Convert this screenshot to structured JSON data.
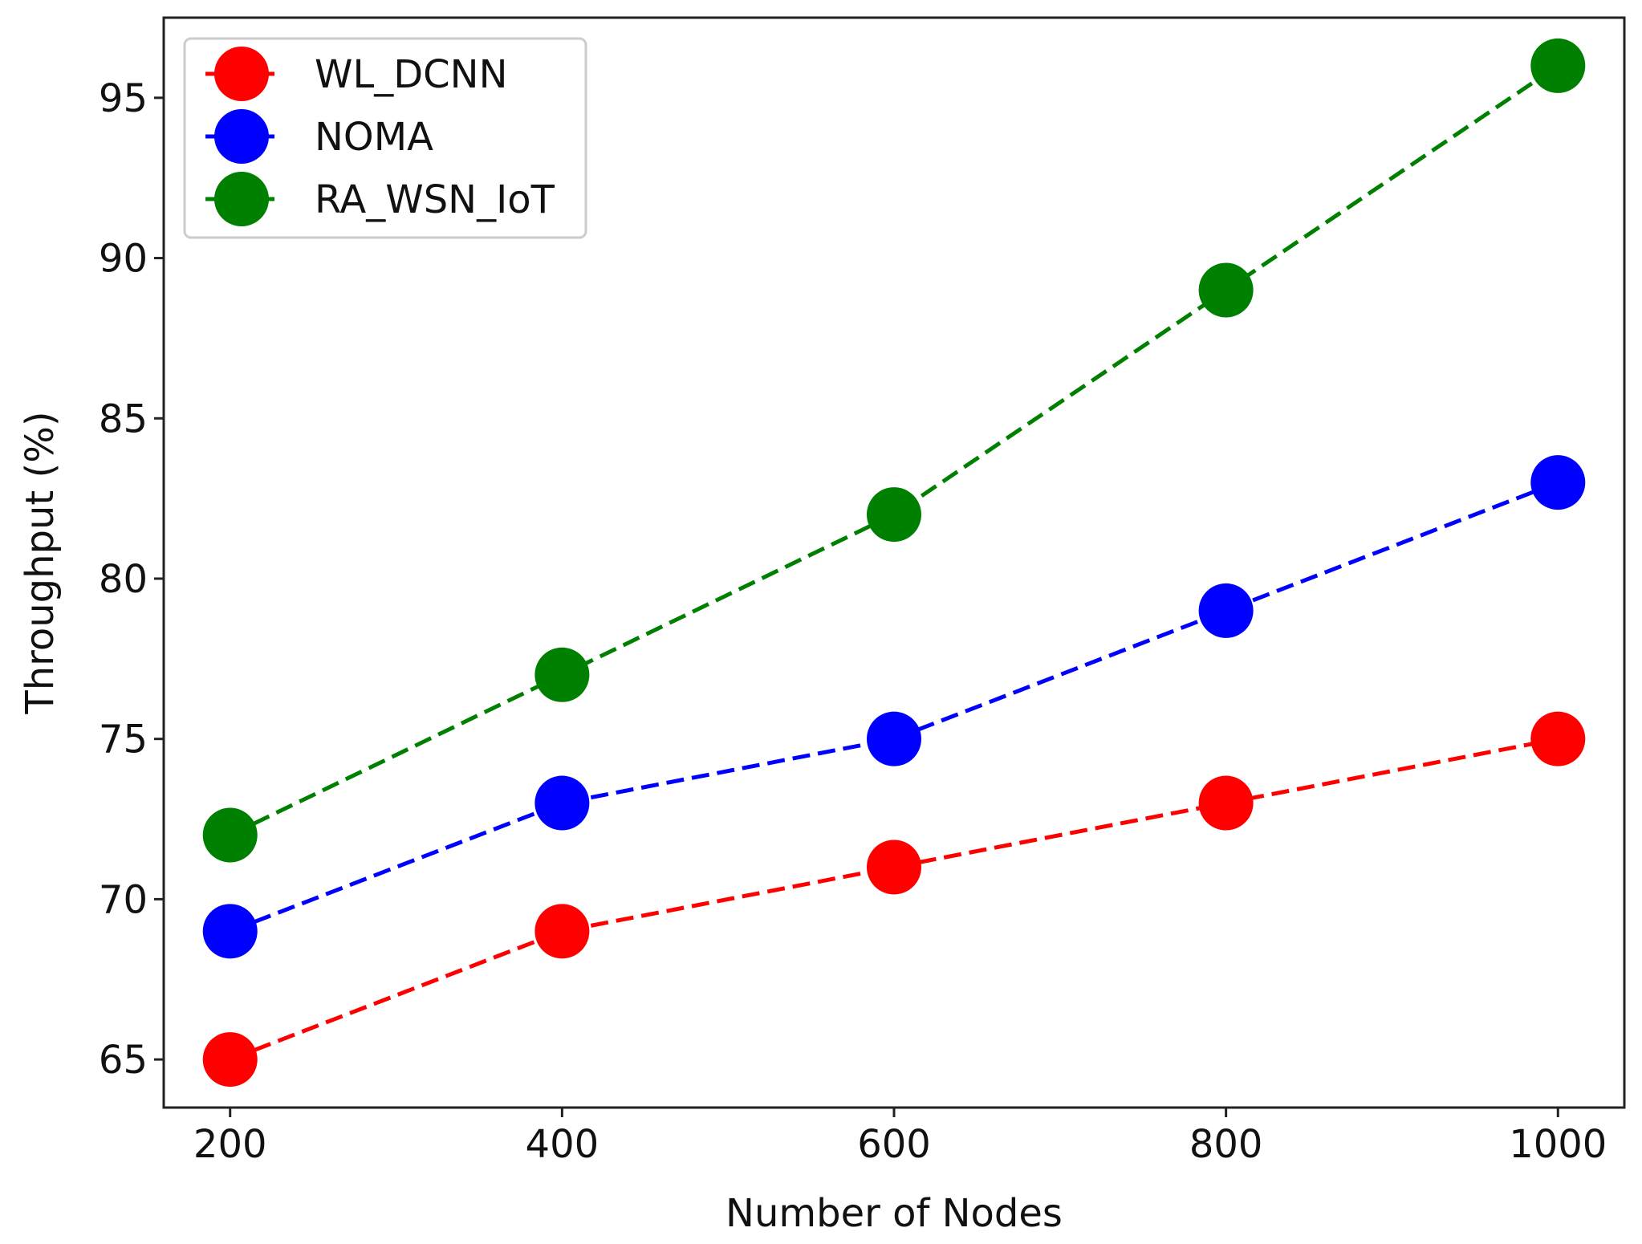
{
  "chart_data": {
    "type": "line",
    "title": "",
    "xlabel": "Number of Nodes",
    "ylabel": "Throughput (%)",
    "x": [
      200,
      400,
      600,
      800,
      1000
    ],
    "xticks": [
      "200",
      "400",
      "600",
      "800",
      "1000"
    ],
    "yticks": [
      65,
      70,
      75,
      80,
      85,
      90,
      95
    ],
    "xlim": [
      160,
      1040
    ],
    "ylim": [
      63.5,
      97.5
    ],
    "grid": false,
    "legend_position": "top-left",
    "series": [
      {
        "name": "WL_DCNN",
        "color": "#ff0000",
        "values": [
          65,
          69,
          71,
          73,
          75
        ]
      },
      {
        "name": "NOMA",
        "color": "#0000ff",
        "values": [
          69,
          73,
          75,
          79,
          83
        ]
      },
      {
        "name": "RA_WSN_IoT",
        "color": "#008000",
        "values": [
          72,
          77,
          82,
          89,
          96
        ]
      }
    ]
  }
}
